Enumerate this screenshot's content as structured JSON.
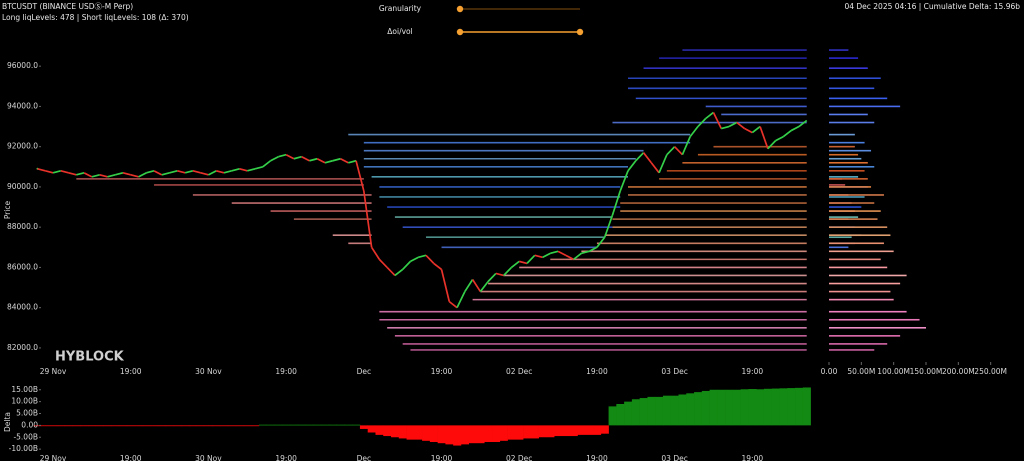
{
  "header": {
    "symbol": "BTCUSDT (BINANCE USDⓈ-M Perp)",
    "liq_summary": "Long liqLevels: 478 | Short liqLevels: 108 (Δ: 370)",
    "status": "04 Dec 2025 04:16 | Cumulative Delta: 15.96b"
  },
  "controls": {
    "granularity": "Granularity",
    "delta_oi_vol": "Δoi/vol"
  },
  "chart_data": {
    "type": "line",
    "watermark": "HYBLOCK",
    "ylabel": "Price",
    "categories": [
      null,
      null,
      "29 Nov",
      null,
      null,
      null,
      null,
      null,
      null,
      null,
      null,
      null,
      "19:00",
      null,
      null,
      null,
      null,
      null,
      null,
      null,
      null,
      null,
      "30 Nov",
      null,
      null,
      null,
      null,
      null,
      null,
      null,
      null,
      null,
      "19:00",
      null,
      null,
      null,
      null,
      null,
      null,
      null,
      null,
      null,
      "Dec",
      null,
      null,
      null,
      null,
      null,
      null,
      null,
      null,
      null,
      "19:00",
      null,
      null,
      null,
      null,
      null,
      null,
      null,
      null,
      null,
      "02 Dec",
      null,
      null,
      null,
      null,
      null,
      null,
      null,
      null,
      null,
      "19:00",
      null,
      null,
      null,
      null,
      null,
      null,
      null,
      null,
      null,
      "03 Dec",
      null,
      null,
      null,
      null,
      null,
      null,
      null,
      null,
      null,
      "19:00",
      null,
      null,
      null,
      null,
      null,
      null,
      null
    ],
    "values": [
      90900,
      90800,
      90700,
      90800,
      90700,
      90600,
      90700,
      90500,
      90600,
      90500,
      90600,
      90700,
      90600,
      90500,
      90700,
      90800,
      90600,
      90700,
      90800,
      90700,
      90800,
      90700,
      90600,
      90800,
      90700,
      90800,
      90900,
      90800,
      90900,
      91000,
      91300,
      91500,
      91600,
      91400,
      91500,
      91300,
      91400,
      91200,
      91300,
      91400,
      91200,
      91300,
      89800,
      87000,
      86400,
      86000,
      85600,
      85900,
      86300,
      86500,
      86600,
      86200,
      85900,
      84300,
      84000,
      84800,
      85400,
      84800,
      85300,
      85700,
      85600,
      86000,
      86300,
      86200,
      86600,
      86500,
      86700,
      86800,
      86600,
      86400,
      86700,
      86800,
      87000,
      87500,
      88600,
      89800,
      90800,
      91300,
      91700,
      91200,
      90700,
      91600,
      92000,
      91600,
      92500,
      93000,
      93400,
      93700,
      92900,
      93000,
      93200,
      92900,
      92700,
      93000,
      91900,
      92300,
      92500,
      92800,
      93000,
      93300
    ],
    "up_color": "#35d04a",
    "down_color": "#e8322a",
    "ylim": [
      81400,
      97300
    ],
    "yticks": [
      {
        "value": 82000,
        "label": "82000.0"
      },
      {
        "value": 84000,
        "label": "84000.0"
      },
      {
        "value": 86000,
        "label": "86000.0"
      },
      {
        "value": 88000,
        "label": "88000.0"
      },
      {
        "value": 90000,
        "label": "90000.0"
      },
      {
        "value": 92000,
        "label": "92000.0"
      },
      {
        "value": 94000,
        "label": "94000.0"
      },
      {
        "value": 96000,
        "label": "96000.0"
      }
    ],
    "levels": [
      {
        "price": 96800,
        "start": 83,
        "end": 99,
        "size": 30,
        "color": "#3030c0"
      },
      {
        "price": 96400,
        "start": 80,
        "end": 99,
        "size": 45,
        "color": "#2a2ad0"
      },
      {
        "price": 95900,
        "start": 78,
        "end": 99,
        "size": 60,
        "color": "#3a3ae0"
      },
      {
        "price": 95400,
        "start": 76,
        "end": 99,
        "size": 80,
        "color": "#2f4fd8"
      },
      {
        "price": 94900,
        "start": 76,
        "end": 99,
        "size": 70,
        "color": "#3355e0"
      },
      {
        "price": 94400,
        "start": 77,
        "end": 99,
        "size": 90,
        "color": "#3a5ff0"
      },
      {
        "price": 94000,
        "start": 86,
        "end": 99,
        "size": 110,
        "color": "#4a6cf0"
      },
      {
        "price": 93600,
        "start": 88,
        "end": 99,
        "size": 60,
        "color": "#5a7ef0"
      },
      {
        "price": 93200,
        "start": 74,
        "end": 99,
        "size": 70,
        "color": "#5a7de8"
      },
      {
        "price": 92600,
        "start": 40,
        "end": 84,
        "size": 40,
        "color": "#6a9cd8"
      },
      {
        "price": 92200,
        "start": 42,
        "end": 84,
        "size": 55,
        "color": "#4a80e0"
      },
      {
        "price": 91800,
        "start": 42,
        "end": 78,
        "size": 65,
        "color": "#5a8ce0"
      },
      {
        "price": 91400,
        "start": 42,
        "end": 77,
        "size": 50,
        "color": "#6aa0d0"
      },
      {
        "price": 91000,
        "start": 42,
        "end": 76,
        "size": 70,
        "color": "#4a86d8"
      },
      {
        "price": 90500,
        "start": 43,
        "end": 76,
        "size": 45,
        "color": "#5ab0c8"
      },
      {
        "price": 90000,
        "start": 44,
        "end": 75,
        "size": 60,
        "color": "#3a6ad8"
      },
      {
        "price": 89500,
        "start": 44,
        "end": 75,
        "size": 55,
        "color": "#4a9ab8"
      },
      {
        "price": 89000,
        "start": 45,
        "end": 75,
        "size": 50,
        "color": "#2a50d0"
      },
      {
        "price": 88500,
        "start": 46,
        "end": 74,
        "size": 45,
        "color": "#6ab8b0"
      },
      {
        "price": 88000,
        "start": 47,
        "end": 74,
        "size": 40,
        "color": "#3a5ad8"
      },
      {
        "price": 87500,
        "start": 50,
        "end": 73,
        "size": 35,
        "color": "#5aa8a0"
      },
      {
        "price": 87000,
        "start": 52,
        "end": 72,
        "size": 30,
        "color": "#4a70d8"
      },
      {
        "price": 90400,
        "start": 5,
        "end": 42,
        "size": 20,
        "color": "#d06060"
      },
      {
        "price": 90100,
        "start": 15,
        "end": 42,
        "size": 25,
        "color": "#c05050"
      },
      {
        "price": 89600,
        "start": 20,
        "end": 43,
        "size": 30,
        "color": "#d07070"
      },
      {
        "price": 89200,
        "start": 25,
        "end": 43,
        "size": 35,
        "color": "#e08080"
      },
      {
        "price": 88800,
        "start": 30,
        "end": 43,
        "size": 40,
        "color": "#d86868"
      },
      {
        "price": 88400,
        "start": 33,
        "end": 43,
        "size": 30,
        "color": "#c87060"
      },
      {
        "price": 87600,
        "start": 38,
        "end": 43,
        "size": 50,
        "color": "#f0a0a0"
      },
      {
        "price": 87200,
        "start": 40,
        "end": 43,
        "size": 40,
        "color": "#e89090"
      },
      {
        "price": 83800,
        "start": 44,
        "end": 99,
        "size": 120,
        "color": "#f080c0"
      },
      {
        "price": 83400,
        "start": 44,
        "end": 99,
        "size": 140,
        "color": "#e878b8"
      },
      {
        "price": 83000,
        "start": 45,
        "end": 99,
        "size": 150,
        "color": "#f090c8"
      },
      {
        "price": 82600,
        "start": 46,
        "end": 99,
        "size": 110,
        "color": "#e070b0"
      },
      {
        "price": 82200,
        "start": 47,
        "end": 99,
        "size": 90,
        "color": "#d868a8"
      },
      {
        "price": 81900,
        "start": 48,
        "end": 99,
        "size": 70,
        "color": "#c860a0"
      },
      {
        "price": 84400,
        "start": 56,
        "end": 99,
        "size": 100,
        "color": "#f088b0"
      },
      {
        "price": 84800,
        "start": 57,
        "end": 99,
        "size": 95,
        "color": "#f09090"
      },
      {
        "price": 85200,
        "start": 58,
        "end": 99,
        "size": 110,
        "color": "#f8a0a0"
      },
      {
        "price": 85600,
        "start": 60,
        "end": 99,
        "size": 120,
        "color": "#f0a8a8"
      },
      {
        "price": 86000,
        "start": 62,
        "end": 99,
        "size": 90,
        "color": "#f898a0"
      },
      {
        "price": 86400,
        "start": 66,
        "end": 99,
        "size": 80,
        "color": "#e88880"
      },
      {
        "price": 86800,
        "start": 70,
        "end": 99,
        "size": 100,
        "color": "#f0a090"
      },
      {
        "price": 87200,
        "start": 72,
        "end": 99,
        "size": 85,
        "color": "#e89070"
      },
      {
        "price": 87600,
        "start": 73,
        "end": 99,
        "size": 95,
        "color": "#e0a070"
      },
      {
        "price": 88000,
        "start": 74,
        "end": 99,
        "size": 90,
        "color": "#d89060"
      },
      {
        "price": 88400,
        "start": 74,
        "end": 99,
        "size": 75,
        "color": "#d08050"
      },
      {
        "price": 88800,
        "start": 75,
        "end": 99,
        "size": 80,
        "color": "#e09050"
      },
      {
        "price": 89200,
        "start": 75,
        "end": 99,
        "size": 70,
        "color": "#c87040"
      },
      {
        "price": 89600,
        "start": 76,
        "end": 99,
        "size": 85,
        "color": "#d07848"
      },
      {
        "price": 90000,
        "start": 76,
        "end": 99,
        "size": 65,
        "color": "#e08040"
      },
      {
        "price": 90400,
        "start": 80,
        "end": 99,
        "size": 60,
        "color": "#d06030"
      },
      {
        "price": 90800,
        "start": 81,
        "end": 99,
        "size": 55,
        "color": "#c85020"
      },
      {
        "price": 91200,
        "start": 83,
        "end": 99,
        "size": 60,
        "color": "#e07030"
      },
      {
        "price": 91600,
        "start": 85,
        "end": 99,
        "size": 45,
        "color": "#d86a28"
      },
      {
        "price": 92000,
        "start": 87,
        "end": 99,
        "size": 40,
        "color": "#c86030"
      }
    ],
    "hist_xlim": [
      0,
      300
    ],
    "hist_xticks": [
      {
        "value": 0,
        "label": "0.00"
      },
      {
        "value": 50,
        "label": "50.00M"
      },
      {
        "value": 100,
        "label": "100.00M"
      },
      {
        "value": 150,
        "label": "150.00M"
      },
      {
        "value": 200,
        "label": "200.00M"
      },
      {
        "value": 250,
        "label": "250.00M"
      }
    ],
    "delta": {
      "ylabel": "Delta",
      "up_color": "#138a13",
      "down_color": "#ff0a0a",
      "ylim": [
        -15,
        17
      ],
      "yticks": [
        {
          "value": 15,
          "label": "15.00B"
        },
        {
          "value": 10,
          "label": "10.00B"
        },
        {
          "value": 5,
          "label": "5.00B"
        },
        {
          "value": 0,
          "label": "0.00"
        },
        {
          "value": -5,
          "label": "-5.00B"
        },
        {
          "value": -10,
          "label": "-10.00B"
        }
      ],
      "values": [
        -0.3,
        -0.3,
        -0.3,
        -0.3,
        -0.3,
        -0.3,
        -0.3,
        -0.3,
        -0.3,
        -0.3,
        -0.3,
        -0.3,
        -0.3,
        -0.3,
        -0.3,
        -0.3,
        -0.3,
        -0.3,
        -0.3,
        -0.3,
        -0.3,
        -0.3,
        -0.3,
        -0.3,
        -0.3,
        -0.3,
        -0.3,
        -0.3,
        -0.3,
        0.3,
        0.3,
        0.3,
        0.3,
        0.3,
        0.3,
        0.3,
        0.3,
        0.3,
        0.3,
        0.3,
        0.3,
        0.3,
        -1.5,
        -3,
        -4,
        -4.5,
        -5,
        -5.5,
        -6,
        -6,
        -6.5,
        -7,
        -7.5,
        -8,
        -8.5,
        -8,
        -7.5,
        -7.5,
        -7,
        -7,
        -6.5,
        -6,
        -6,
        -5.5,
        -5.5,
        -5,
        -5,
        -4.5,
        -4.5,
        -4.5,
        -4,
        -4,
        -4,
        -3.5,
        8,
        9,
        10,
        11,
        11.5,
        12,
        12,
        12.5,
        12.5,
        13,
        13.5,
        14,
        14.5,
        15,
        15,
        15,
        15,
        15.2,
        15.3,
        15.2,
        15.4,
        15.5,
        15.6,
        15.7,
        15.8,
        15.96
      ]
    }
  }
}
